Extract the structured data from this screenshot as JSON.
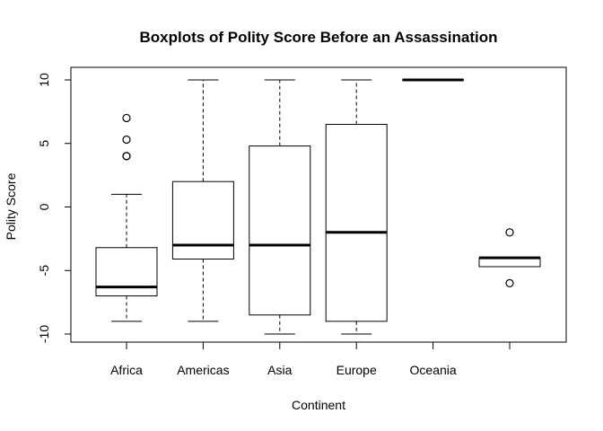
{
  "chart_data": {
    "type": "boxplot",
    "title": "Boxplots of Polity Score Before an Assassination",
    "xlabel": "Continent",
    "ylabel": "Polity Score",
    "ylim": [
      -10.5,
      10.5
    ],
    "yticks": [
      -10,
      -5,
      0,
      5,
      10
    ],
    "categories": [
      "Africa",
      "Americas",
      "Asia",
      "Europe",
      "Oceania",
      ""
    ],
    "boxes": [
      {
        "category": "Africa",
        "whisker_low": -9,
        "q1": -7,
        "median": -6.3,
        "q3": -3.2,
        "whisker_high": 1,
        "outliers": [
          7,
          5.3,
          4,
          4
        ]
      },
      {
        "category": "Americas",
        "whisker_low": -9,
        "q1": -4.1,
        "median": -3,
        "q3": 2,
        "whisker_high": 10,
        "outliers": []
      },
      {
        "category": "Asia",
        "whisker_low": -10,
        "q1": -8.5,
        "median": -3,
        "q3": 4.8,
        "whisker_high": 10,
        "outliers": []
      },
      {
        "category": "Europe",
        "whisker_low": -10,
        "q1": -9,
        "median": -2,
        "q3": 6.5,
        "whisker_high": 10,
        "outliers": []
      },
      {
        "category": "Oceania",
        "whisker_low": 10,
        "q1": 10,
        "median": 10,
        "q3": 10,
        "whisker_high": 10,
        "outliers": []
      },
      {
        "category": "",
        "whisker_low": -4.7,
        "q1": -4.7,
        "median": -4,
        "q3": -4,
        "whisker_high": -4,
        "outliers": [
          -2,
          -6
        ]
      }
    ],
    "grid": false,
    "legend": "none"
  }
}
